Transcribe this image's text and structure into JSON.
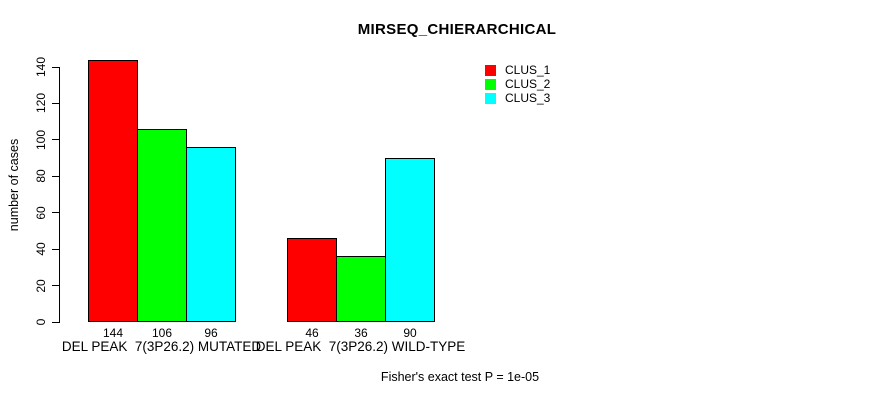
{
  "title": "MIRSEQ_CHIERARCHICAL",
  "footnote": "Fisher's exact test P = 1e-05",
  "colors": {
    "background": "#ffffff",
    "text": "#000000",
    "bar_border": "#000000",
    "clus_1": "#ff0000",
    "clus_2": "#00ff00",
    "clus_3": "#00ffff"
  },
  "chart_data": {
    "type": "bar",
    "title": "MIRSEQ_CHIERARCHICAL",
    "xlabel": "",
    "ylabel": "number of cases",
    "ylim": [
      0,
      140
    ],
    "yticks": [
      0,
      20,
      40,
      60,
      80,
      100,
      120,
      140
    ],
    "grid": false,
    "legend_position": "top-right",
    "categories": [
      "DEL PEAK  7(3P26.2) MUTATED",
      "DEL PEAK  7(3P26.2) WILD-TYPE"
    ],
    "series": [
      {
        "name": "CLUS_1",
        "color": "#ff0000",
        "values": [
          144,
          46
        ]
      },
      {
        "name": "CLUS_2",
        "color": "#00ff00",
        "values": [
          106,
          36
        ]
      },
      {
        "name": "CLUS_3",
        "color": "#00ffff",
        "values": [
          96,
          90
        ]
      }
    ],
    "bar_value_labels": [
      [
        144,
        106,
        96
      ],
      [
        46,
        36,
        90
      ]
    ],
    "annotation": "Fisher's exact test P = 1e-05"
  }
}
